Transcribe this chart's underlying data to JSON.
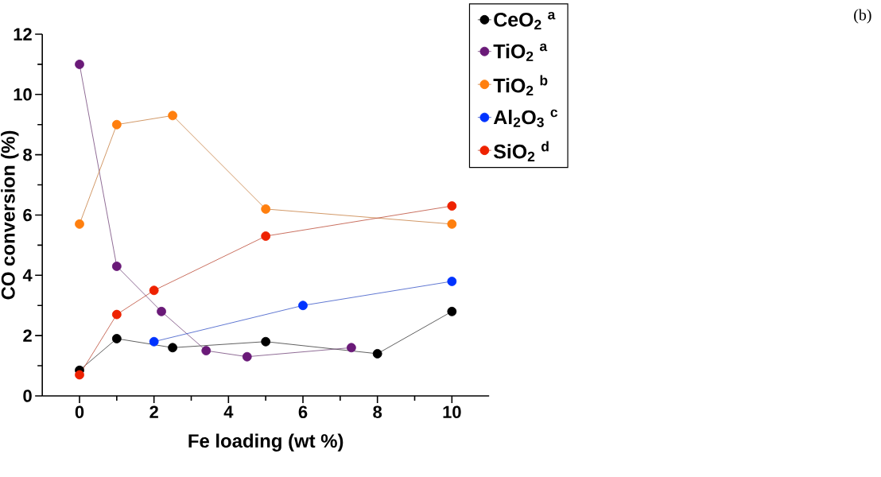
{
  "chart_data": {
    "type": "line",
    "xlabel": "Fe loading (wt %)",
    "ylabel": "CO conversion (%)",
    "xlim": [
      -1,
      11
    ],
    "xticks": [
      0,
      2,
      4,
      6,
      8,
      10
    ],
    "ylim": [
      0,
      12
    ],
    "yticks": [
      0,
      2,
      4,
      6,
      8,
      10,
      12
    ],
    "series": [
      {
        "name": "CeO$_{2}$ $^{a}$",
        "color": "#000000",
        "x": [
          0,
          1,
          2.5,
          5,
          8,
          10
        ],
        "values": [
          0.85,
          1.9,
          1.6,
          1.8,
          1.4,
          2.8
        ]
      },
      {
        "name": "TiO$_{2}$ $^{a}$",
        "color": "#6a1a78",
        "x": [
          0,
          1,
          2.2,
          3.4,
          4.5,
          7.3
        ],
        "values": [
          11,
          4.3,
          2.8,
          1.5,
          1.3,
          1.6
        ]
      },
      {
        "name": "TiO$_{2}$ $^{b}$",
        "color": "#ff7f0e",
        "x": [
          0,
          1,
          2.5,
          5,
          10
        ],
        "values": [
          5.7,
          9,
          9.3,
          6.2,
          5.7
        ]
      },
      {
        "name": "Al$_{2}$O$_{3}$ $^{c}$",
        "color": "#0033ff",
        "x": [
          2,
          6,
          10
        ],
        "values": [
          1.8,
          3,
          3.8
        ]
      },
      {
        "name": "SiO$_{2}$ $^{d}$",
        "color": "#ee2200",
        "x": [
          0,
          1,
          2,
          5,
          10
        ],
        "values": [
          0.7,
          2.7,
          3.5,
          5.3,
          6.3
        ]
      }
    ],
    "marker": "circle",
    "line_style": "solid",
    "legend": "top right",
    "grid": false,
    "annotations": [
      "(b)"
    ]
  }
}
